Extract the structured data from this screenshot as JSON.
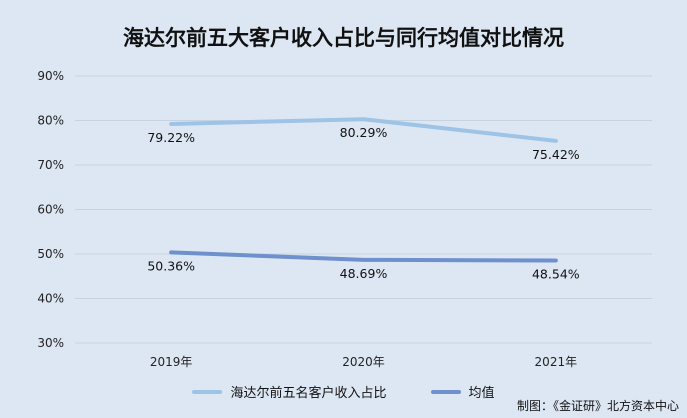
{
  "chart_data": {
    "type": "line",
    "title": "海达尔前五大客户收入占比与同行均值对比情况",
    "categories": [
      "2019年",
      "2020年",
      "2021年"
    ],
    "y_ticks": [
      "30%",
      "40%",
      "50%",
      "60%",
      "70%",
      "80%",
      "90%"
    ],
    "ylim": [
      30,
      90
    ],
    "grid": true,
    "legend_position": "bottom",
    "series": [
      {
        "name": "海达尔前五名客户收入占比",
        "values": [
          79.22,
          80.29,
          75.42
        ],
        "labels": [
          "79.22%",
          "80.29%",
          "75.42%"
        ],
        "color": "#9dc3e6"
      },
      {
        "name": "均值",
        "values": [
          50.36,
          48.69,
          48.54
        ],
        "labels": [
          "50.36%",
          "48.69%",
          "48.54%"
        ],
        "color": "#6e90cc"
      }
    ],
    "source": "制图：《金证研》北方资本中心"
  }
}
